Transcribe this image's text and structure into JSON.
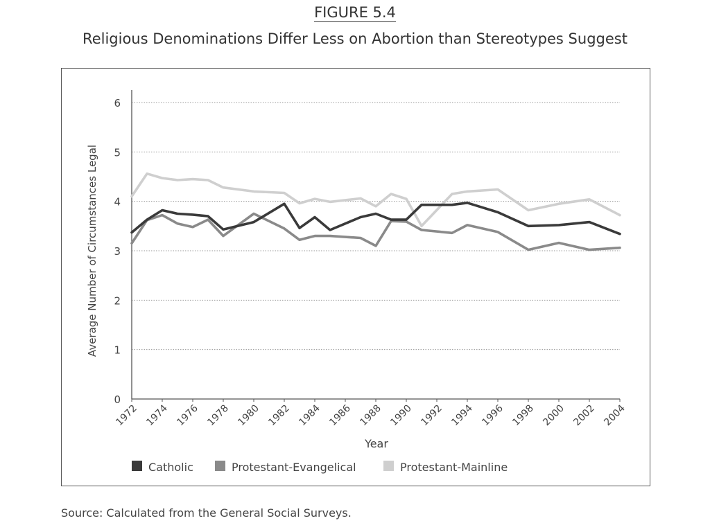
{
  "figure_label": "FIGURE 5.4",
  "title": "Religious Denominations Differ Less on Abortion than Stereotypes Suggest",
  "source": "Source: Calculated from the General Social Surveys.",
  "chart_data": {
    "type": "line",
    "title": "Religious Denominations Differ Less on Abortion than Stereotypes Suggest",
    "xlabel": "Year",
    "ylabel": "Average Number of Circumstances Legal",
    "ylim": [
      0,
      6
    ],
    "yticks": [
      0,
      1,
      2,
      3,
      4,
      5,
      6
    ],
    "xlim": [
      1972,
      2004
    ],
    "xticks": [
      1972,
      1974,
      1976,
      1978,
      1980,
      1982,
      1984,
      1986,
      1988,
      1990,
      1992,
      1994,
      1996,
      1998,
      2000,
      2002,
      2004
    ],
    "x": [
      1972,
      1973,
      1974,
      1975,
      1976,
      1977,
      1978,
      1980,
      1982,
      1983,
      1984,
      1985,
      1987,
      1988,
      1989,
      1990,
      1991,
      1993,
      1994,
      1996,
      1998,
      2000,
      2002,
      2004
    ],
    "grid": true,
    "legend": "bottom",
    "series": [
      {
        "name": "Catholic",
        "color": "#3a3a3a",
        "values": [
          3.37,
          3.63,
          3.82,
          3.75,
          3.73,
          3.7,
          3.43,
          3.58,
          3.95,
          3.46,
          3.68,
          3.42,
          3.68,
          3.75,
          3.63,
          3.63,
          3.93,
          3.93,
          3.97,
          3.78,
          3.5,
          3.52,
          3.58,
          3.34
        ]
      },
      {
        "name": "Protestant-Evangelical",
        "color": "#8a8a8a",
        "values": [
          3.15,
          3.62,
          3.72,
          3.55,
          3.48,
          3.63,
          3.3,
          3.75,
          3.45,
          3.22,
          3.3,
          3.3,
          3.26,
          3.1,
          3.6,
          3.59,
          3.42,
          3.36,
          3.52,
          3.38,
          3.02,
          3.16,
          3.02,
          3.06
        ]
      },
      {
        "name": "Protestant-Mainline",
        "color": "#cfcfcf",
        "values": [
          4.1,
          4.56,
          4.47,
          4.43,
          4.45,
          4.43,
          4.28,
          4.2,
          4.17,
          3.96,
          4.05,
          3.99,
          4.06,
          3.9,
          4.15,
          4.05,
          3.5,
          4.15,
          4.2,
          4.24,
          3.82,
          3.95,
          4.04,
          3.72
        ]
      }
    ]
  }
}
